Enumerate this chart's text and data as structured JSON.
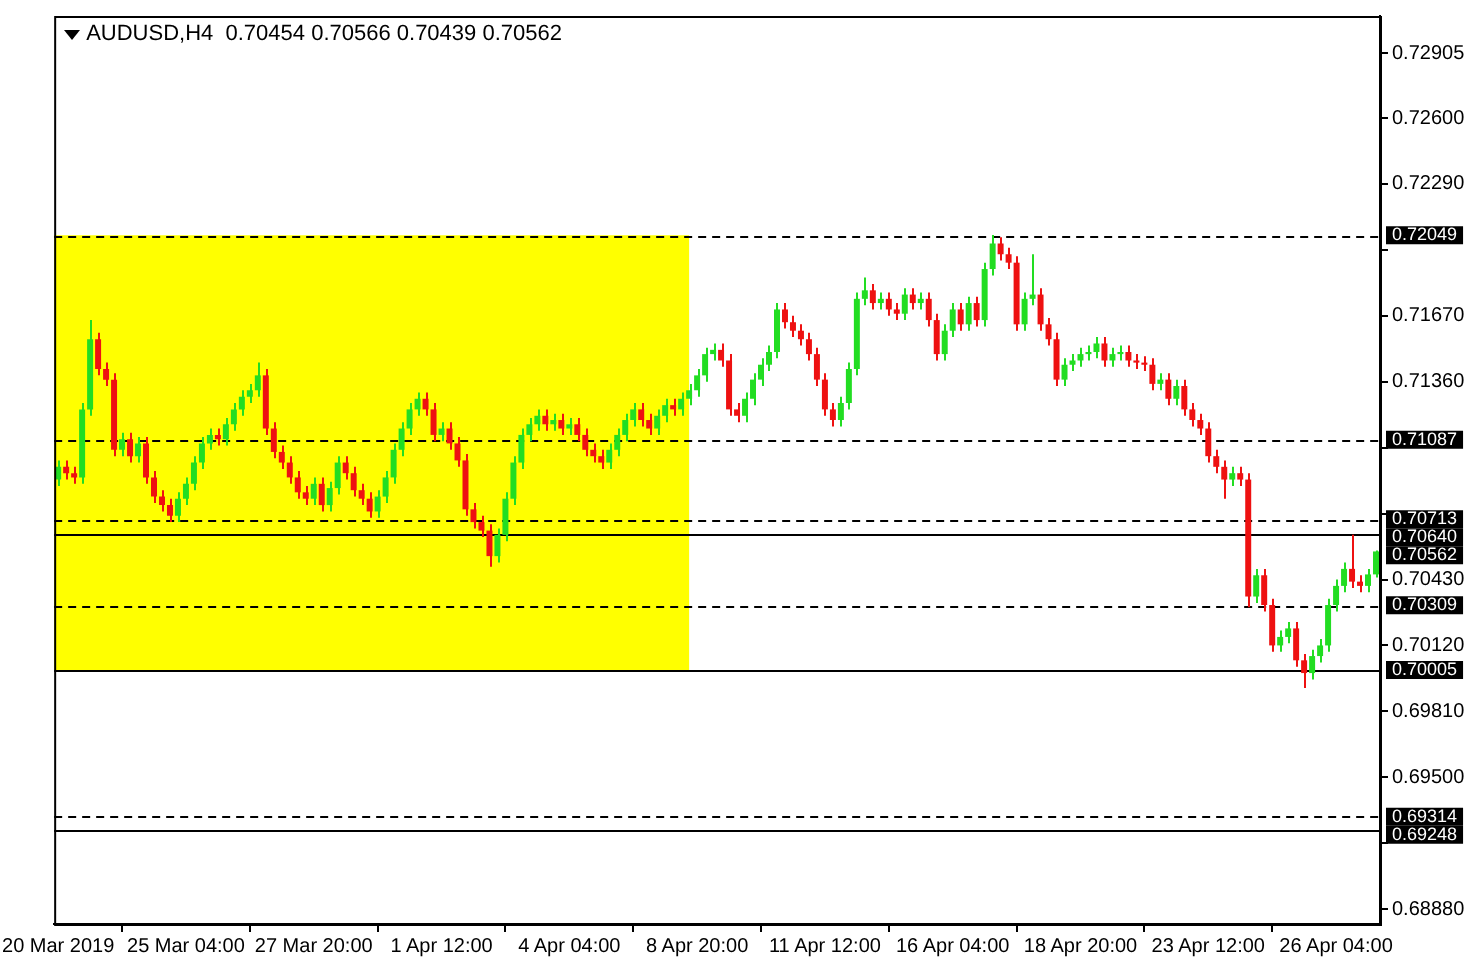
{
  "chart_data": {
    "type": "candlestick",
    "title": "AUDUSD,H4  0.70454 0.70566 0.70439 0.70562",
    "categories": [
      "20 Mar 2019",
      null,
      null,
      null,
      null,
      null,
      null,
      null,
      null,
      null,
      null,
      null,
      null,
      null,
      null,
      null,
      "25 Mar 04:00",
      null,
      null,
      null,
      null,
      null,
      null,
      null,
      null,
      null,
      null,
      null,
      null,
      null,
      null,
      null,
      "27 Mar 20:00",
      null,
      null,
      null,
      null,
      null,
      null,
      null,
      null,
      null,
      null,
      null,
      null,
      null,
      null,
      null,
      "1 Apr 12:00",
      null,
      null,
      null,
      null,
      null,
      null,
      null,
      null,
      null,
      null,
      null,
      null,
      null,
      null,
      null,
      "4 Apr 04:00",
      null,
      null,
      null,
      null,
      null,
      null,
      null,
      null,
      null,
      null,
      null,
      null,
      null,
      null,
      null,
      "8 Apr 20:00",
      null,
      null,
      null,
      null,
      null,
      null,
      null,
      null,
      null,
      null,
      null,
      null,
      null,
      null,
      null,
      "11 Apr 12:00",
      null,
      null,
      null,
      null,
      null,
      null,
      null,
      null,
      null,
      null,
      null,
      null,
      null,
      null,
      null,
      "16 Apr 04:00",
      null,
      null,
      null,
      null,
      null,
      null,
      null,
      null,
      null,
      null,
      null,
      null,
      null,
      null,
      null,
      "18 Apr 20:00",
      null,
      null,
      null,
      null,
      null,
      null,
      null,
      null,
      null,
      null,
      null,
      null,
      null,
      null,
      null,
      "23 Apr 12:00",
      null,
      null,
      null,
      null,
      null,
      null,
      null,
      null,
      null,
      null,
      null,
      null,
      null,
      null,
      null,
      "26 Apr 04:00",
      null,
      null,
      null,
      null,
      null
    ],
    "ohlc": [
      [
        0.709,
        0.7099,
        0.7087,
        0.7096
      ],
      [
        0.7096,
        0.7099,
        0.709,
        0.7093
      ],
      [
        0.7093,
        0.7096,
        0.7088,
        0.7091
      ],
      [
        0.7091,
        0.7126,
        0.7088,
        0.7123
      ],
      [
        0.7123,
        0.7165,
        0.712,
        0.7156
      ],
      [
        0.7156,
        0.7159,
        0.7139,
        0.7142
      ],
      [
        0.7142,
        0.7145,
        0.7134,
        0.7137
      ],
      [
        0.7137,
        0.714,
        0.7101,
        0.7104
      ],
      [
        0.7104,
        0.7112,
        0.7101,
        0.7109
      ],
      [
        0.7109,
        0.7112,
        0.7098,
        0.7101
      ],
      [
        0.7101,
        0.711,
        0.7098,
        0.7107
      ],
      [
        0.7107,
        0.711,
        0.7088,
        0.7091
      ],
      [
        0.7091,
        0.7094,
        0.7079,
        0.7082
      ],
      [
        0.7082,
        0.7085,
        0.7075,
        0.7078
      ],
      [
        0.7078,
        0.7081,
        0.707,
        0.7073
      ],
      [
        0.7073,
        0.7084,
        0.707,
        0.7081
      ],
      [
        0.7081,
        0.7091,
        0.7078,
        0.7088
      ],
      [
        0.7088,
        0.7101,
        0.7085,
        0.7098
      ],
      [
        0.7098,
        0.711,
        0.7095,
        0.7107
      ],
      [
        0.7107,
        0.7114,
        0.7104,
        0.7111
      ],
      [
        0.7111,
        0.7114,
        0.7106,
        0.7109
      ],
      [
        0.7109,
        0.7119,
        0.7106,
        0.7116
      ],
      [
        0.7116,
        0.7126,
        0.7113,
        0.7123
      ],
      [
        0.7123,
        0.7132,
        0.712,
        0.7129
      ],
      [
        0.7129,
        0.7135,
        0.7126,
        0.7132
      ],
      [
        0.7132,
        0.7145,
        0.7129,
        0.7139
      ],
      [
        0.7139,
        0.7142,
        0.7111,
        0.7114
      ],
      [
        0.7114,
        0.7117,
        0.71,
        0.7103
      ],
      [
        0.7103,
        0.7106,
        0.7095,
        0.7098
      ],
      [
        0.7098,
        0.7101,
        0.7088,
        0.7091
      ],
      [
        0.7091,
        0.7094,
        0.7081,
        0.7084
      ],
      [
        0.7084,
        0.7087,
        0.7078,
        0.7081
      ],
      [
        0.7081,
        0.7091,
        0.7078,
        0.7088
      ],
      [
        0.7088,
        0.7091,
        0.7075,
        0.7078
      ],
      [
        0.7078,
        0.7089,
        0.7075,
        0.7086
      ],
      [
        0.7086,
        0.7101,
        0.7083,
        0.7098
      ],
      [
        0.7098,
        0.7101,
        0.709,
        0.7093
      ],
      [
        0.7093,
        0.7096,
        0.7082,
        0.7085
      ],
      [
        0.7085,
        0.7088,
        0.7078,
        0.7081
      ],
      [
        0.7081,
        0.7084,
        0.7072,
        0.7075
      ],
      [
        0.7075,
        0.7085,
        0.7072,
        0.7082
      ],
      [
        0.7082,
        0.7094,
        0.7079,
        0.7091
      ],
      [
        0.7091,
        0.7107,
        0.7088,
        0.7104
      ],
      [
        0.7104,
        0.7117,
        0.7101,
        0.7114
      ],
      [
        0.7114,
        0.7126,
        0.7111,
        0.7123
      ],
      [
        0.7123,
        0.7131,
        0.712,
        0.7128
      ],
      [
        0.7128,
        0.7131,
        0.712,
        0.7123
      ],
      [
        0.7123,
        0.7126,
        0.7108,
        0.7111
      ],
      [
        0.7111,
        0.7117,
        0.7108,
        0.7114
      ],
      [
        0.7114,
        0.7117,
        0.7104,
        0.7107
      ],
      [
        0.7107,
        0.711,
        0.7096,
        0.7099
      ],
      [
        0.7099,
        0.7102,
        0.7073,
        0.7076
      ],
      [
        0.7076,
        0.7079,
        0.7067,
        0.707
      ],
      [
        0.707,
        0.7073,
        0.7063,
        0.7066
      ],
      [
        0.7066,
        0.7069,
        0.7049,
        0.7054
      ],
      [
        0.7054,
        0.7067,
        0.7051,
        0.7064
      ],
      [
        0.7064,
        0.7084,
        0.7061,
        0.7081
      ],
      [
        0.7081,
        0.7101,
        0.7078,
        0.7098
      ],
      [
        0.7098,
        0.7114,
        0.7095,
        0.7111
      ],
      [
        0.7111,
        0.7119,
        0.7108,
        0.7116
      ],
      [
        0.7116,
        0.7123,
        0.7113,
        0.712
      ],
      [
        0.712,
        0.7123,
        0.7113,
        0.7116
      ],
      [
        0.7116,
        0.7121,
        0.7113,
        0.7118
      ],
      [
        0.7118,
        0.7121,
        0.7111,
        0.7114
      ],
      [
        0.7114,
        0.7119,
        0.7111,
        0.7116
      ],
      [
        0.7116,
        0.7119,
        0.7108,
        0.7111
      ],
      [
        0.7111,
        0.7114,
        0.7101,
        0.7104
      ],
      [
        0.7104,
        0.7107,
        0.7098,
        0.7101
      ],
      [
        0.7101,
        0.7104,
        0.7095,
        0.7098
      ],
      [
        0.7098,
        0.7107,
        0.7095,
        0.7104
      ],
      [
        0.7104,
        0.7114,
        0.7101,
        0.7111
      ],
      [
        0.7111,
        0.7121,
        0.7108,
        0.7118
      ],
      [
        0.7118,
        0.7126,
        0.7115,
        0.7123
      ],
      [
        0.7123,
        0.7126,
        0.7115,
        0.7118
      ],
      [
        0.7118,
        0.7121,
        0.7111,
        0.7114
      ],
      [
        0.7114,
        0.7123,
        0.7111,
        0.712
      ],
      [
        0.712,
        0.7128,
        0.7117,
        0.7125
      ],
      [
        0.7125,
        0.7128,
        0.712,
        0.7123
      ],
      [
        0.7123,
        0.7131,
        0.712,
        0.7128
      ],
      [
        0.7128,
        0.7135,
        0.7125,
        0.7132
      ],
      [
        0.7132,
        0.7142,
        0.7129,
        0.7139
      ],
      [
        0.7139,
        0.7152,
        0.7136,
        0.7149
      ],
      [
        0.7149,
        0.7154,
        0.7146,
        0.7151
      ],
      [
        0.7151,
        0.7154,
        0.7143,
        0.7146
      ],
      [
        0.7146,
        0.7149,
        0.712,
        0.7123
      ],
      [
        0.7123,
        0.7126,
        0.7117,
        0.712
      ],
      [
        0.712,
        0.7131,
        0.7117,
        0.7128
      ],
      [
        0.7128,
        0.714,
        0.7125,
        0.7137
      ],
      [
        0.7137,
        0.7147,
        0.7134,
        0.7144
      ],
      [
        0.7144,
        0.7153,
        0.7141,
        0.715
      ],
      [
        0.715,
        0.7173,
        0.7147,
        0.717
      ],
      [
        0.717,
        0.7173,
        0.7161,
        0.7164
      ],
      [
        0.7164,
        0.7167,
        0.7157,
        0.716
      ],
      [
        0.716,
        0.7163,
        0.7153,
        0.7156
      ],
      [
        0.7156,
        0.7159,
        0.7146,
        0.7149
      ],
      [
        0.7149,
        0.7152,
        0.7134,
        0.7137
      ],
      [
        0.7137,
        0.714,
        0.712,
        0.7123
      ],
      [
        0.7123,
        0.7126,
        0.7115,
        0.7118
      ],
      [
        0.7118,
        0.7129,
        0.7115,
        0.7126
      ],
      [
        0.7126,
        0.7145,
        0.7123,
        0.7142
      ],
      [
        0.7142,
        0.7178,
        0.7139,
        0.7175
      ],
      [
        0.7175,
        0.7185,
        0.7172,
        0.7179
      ],
      [
        0.7179,
        0.7182,
        0.717,
        0.7173
      ],
      [
        0.7173,
        0.7178,
        0.717,
        0.7175
      ],
      [
        0.7175,
        0.7178,
        0.7167,
        0.717
      ],
      [
        0.717,
        0.7173,
        0.7165,
        0.7168
      ],
      [
        0.7168,
        0.718,
        0.7165,
        0.7177
      ],
      [
        0.7177,
        0.718,
        0.717,
        0.7173
      ],
      [
        0.7173,
        0.7178,
        0.717,
        0.7175
      ],
      [
        0.7175,
        0.7178,
        0.7162,
        0.7165
      ],
      [
        0.7165,
        0.7168,
        0.7146,
        0.7149
      ],
      [
        0.7149,
        0.7163,
        0.7146,
        0.716
      ],
      [
        0.716,
        0.7173,
        0.7157,
        0.717
      ],
      [
        0.717,
        0.7173,
        0.716,
        0.7163
      ],
      [
        0.7163,
        0.7176,
        0.716,
        0.7173
      ],
      [
        0.7173,
        0.7176,
        0.7162,
        0.7165
      ],
      [
        0.7165,
        0.7192,
        0.7162,
        0.7189
      ],
      [
        0.7189,
        0.7205,
        0.7186,
        0.7201
      ],
      [
        0.7201,
        0.7204,
        0.7193,
        0.7196
      ],
      [
        0.7196,
        0.7199,
        0.7189,
        0.7192
      ],
      [
        0.7192,
        0.7195,
        0.716,
        0.7163
      ],
      [
        0.7163,
        0.7178,
        0.716,
        0.7175
      ],
      [
        0.7175,
        0.7196,
        0.7172,
        0.7177
      ],
      [
        0.7177,
        0.718,
        0.716,
        0.7163
      ],
      [
        0.7163,
        0.7166,
        0.7153,
        0.7156
      ],
      [
        0.7156,
        0.7159,
        0.7134,
        0.7137
      ],
      [
        0.7137,
        0.7147,
        0.7134,
        0.7144
      ],
      [
        0.7144,
        0.7149,
        0.7141,
        0.7146
      ],
      [
        0.7146,
        0.7152,
        0.7143,
        0.7149
      ],
      [
        0.7149,
        0.7153,
        0.7146,
        0.715
      ],
      [
        0.715,
        0.7157,
        0.7147,
        0.7154
      ],
      [
        0.7154,
        0.7157,
        0.7143,
        0.7146
      ],
      [
        0.7146,
        0.7152,
        0.7143,
        0.7149
      ],
      [
        0.7149,
        0.7153,
        0.7146,
        0.715
      ],
      [
        0.715,
        0.7153,
        0.7143,
        0.7146
      ],
      [
        0.7146,
        0.7149,
        0.7142,
        0.7145
      ],
      [
        0.7145,
        0.7148,
        0.7141,
        0.7144
      ],
      [
        0.7144,
        0.7147,
        0.7132,
        0.7135
      ],
      [
        0.7135,
        0.714,
        0.7132,
        0.7137
      ],
      [
        0.7137,
        0.714,
        0.7125,
        0.7128
      ],
      [
        0.7128,
        0.7137,
        0.7125,
        0.7134
      ],
      [
        0.7134,
        0.7137,
        0.712,
        0.7123
      ],
      [
        0.7123,
        0.7126,
        0.7115,
        0.7118
      ],
      [
        0.7118,
        0.7121,
        0.7111,
        0.7114
      ],
      [
        0.7114,
        0.7117,
        0.7098,
        0.7101
      ],
      [
        0.7101,
        0.7104,
        0.7093,
        0.7096
      ],
      [
        0.7096,
        0.7099,
        0.7081,
        0.709
      ],
      [
        0.709,
        0.7096,
        0.7087,
        0.7093
      ],
      [
        0.7093,
        0.7096,
        0.7087,
        0.709
      ],
      [
        0.709,
        0.7093,
        0.703,
        0.7035
      ],
      [
        0.7035,
        0.7048,
        0.7032,
        0.7045
      ],
      [
        0.7045,
        0.7048,
        0.7028,
        0.7031
      ],
      [
        0.7031,
        0.7034,
        0.7009,
        0.7012
      ],
      [
        0.7012,
        0.7019,
        0.7009,
        0.7016
      ],
      [
        0.7016,
        0.7023,
        0.7013,
        0.702
      ],
      [
        0.702,
        0.7023,
        0.7002,
        0.7005
      ],
      [
        0.7005,
        0.7008,
        0.6992,
        0.6999
      ],
      [
        0.6999,
        0.701,
        0.6996,
        0.7007
      ],
      [
        0.7007,
        0.7015,
        0.7004,
        0.7012
      ],
      [
        0.7012,
        0.7034,
        0.7009,
        0.7031
      ],
      [
        0.7031,
        0.7043,
        0.7028,
        0.704
      ],
      [
        0.704,
        0.7051,
        0.7037,
        0.7048
      ],
      [
        0.7048,
        0.7064,
        0.7039,
        0.7042
      ],
      [
        0.7042,
        0.7045,
        0.7037,
        0.704
      ],
      [
        0.704,
        0.7048,
        0.7037,
        0.70454
      ],
      [
        0.70454,
        0.70566,
        0.70439,
        0.70562
      ]
    ],
    "ylim": [
      0.6881,
      0.7308
    ],
    "yticks": [
      {
        "value": 0.72905,
        "label": "0.72905"
      },
      {
        "value": 0.726,
        "label": "0.72600"
      },
      {
        "value": 0.7229,
        "label": "0.72290"
      },
      {
        "value": 0.7198,
        "label": null
      },
      {
        "value": 0.7167,
        "label": "0.71670"
      },
      {
        "value": 0.7136,
        "label": "0.71360"
      },
      {
        "value": 0.7105,
        "label": null
      },
      {
        "value": 0.7074,
        "label": null
      },
      {
        "value": 0.7043,
        "label": "0.70430"
      },
      {
        "value": 0.7012,
        "label": "0.70120"
      },
      {
        "value": 0.6981,
        "label": "0.69810"
      },
      {
        "value": 0.695,
        "label": "0.69500"
      },
      {
        "value": 0.6919,
        "label": null
      },
      {
        "value": 0.6888,
        "label": "0.68880"
      }
    ],
    "ref_lines": [
      {
        "axis": "y",
        "value": 0.72049,
        "label": "0.72049",
        "line_style": "dashed",
        "color": "#000000"
      },
      {
        "axis": "y",
        "value": 0.71087,
        "label": "0.71087",
        "line_style": "dashed",
        "color": "#000000"
      },
      {
        "axis": "y",
        "value": 0.70713,
        "label": "0.70713",
        "line_style": "dashed",
        "color": "#000000"
      },
      {
        "axis": "y",
        "value": 0.7064,
        "label": "0.70640",
        "line_style": "solid",
        "color": "#000000"
      },
      {
        "axis": "y",
        "value": 0.70309,
        "label": "0.70309",
        "line_style": "dashed",
        "color": "#000000"
      },
      {
        "axis": "y",
        "value": 0.70005,
        "label": "0.70005",
        "line_style": "solid",
        "color": "#000000"
      },
      {
        "axis": "y",
        "value": 0.69314,
        "label": "0.69314",
        "line_style": "dashed",
        "color": "#000000"
      },
      {
        "axis": "y",
        "value": 0.69248,
        "label": "0.69248",
        "line_style": "solid",
        "color": "#000000"
      }
    ],
    "annotations": [
      "0.70562"
    ],
    "bands": [
      {
        "axis": "y",
        "from": 0.70005,
        "to": 0.72049,
        "color": "#ffff00"
      }
    ]
  }
}
